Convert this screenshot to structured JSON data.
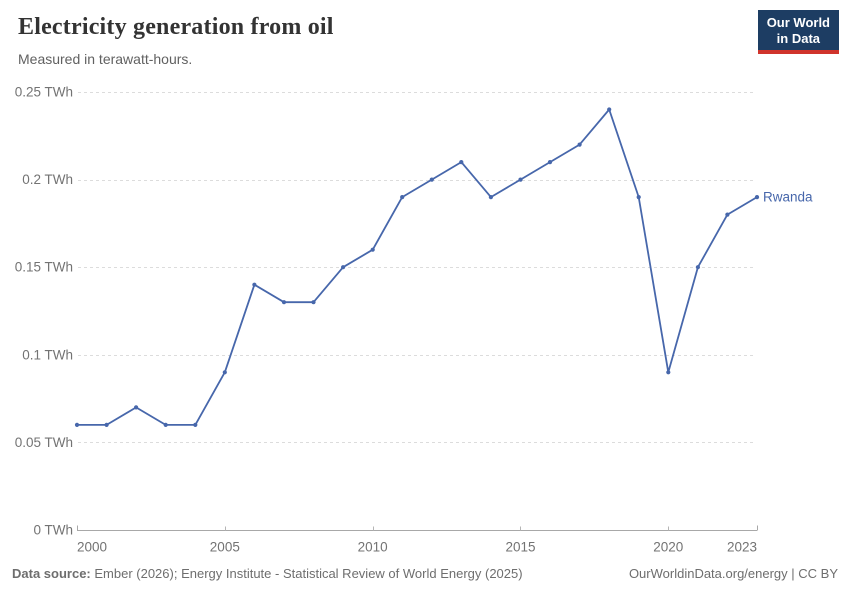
{
  "logo": {
    "line1": "Our World",
    "line2": "in Data",
    "bg": "#1d3d63",
    "accent": "#d0342c"
  },
  "chart_data": {
    "type": "line",
    "title": "Electricity generation from oil",
    "subtitle": "Measured in terawatt-hours.",
    "xlabel": "",
    "ylabel": "TWh",
    "x": [
      2000,
      2001,
      2002,
      2003,
      2004,
      2005,
      2006,
      2007,
      2008,
      2009,
      2010,
      2011,
      2012,
      2013,
      2014,
      2015,
      2016,
      2017,
      2018,
      2019,
      2020,
      2021,
      2022,
      2023
    ],
    "series": [
      {
        "name": "Rwanda",
        "color": "#4767ab",
        "values": [
          0.06,
          0.06,
          0.07,
          0.06,
          0.06,
          0.09,
          0.14,
          0.13,
          0.13,
          0.15,
          0.16,
          0.19,
          0.2,
          0.21,
          0.19,
          0.2,
          0.21,
          0.22,
          0.24,
          0.19,
          0.09,
          0.15,
          0.18,
          0.19
        ]
      }
    ],
    "xlim": [
      2000,
      2023
    ],
    "ylim": [
      0,
      0.25
    ],
    "y_ticks": [
      {
        "value": 0,
        "label": "0 TWh"
      },
      {
        "value": 0.05,
        "label": "0.05 TWh"
      },
      {
        "value": 0.1,
        "label": "0.1 TWh"
      },
      {
        "value": 0.15,
        "label": "0.15 TWh"
      },
      {
        "value": 0.2,
        "label": "0.2 TWh"
      },
      {
        "value": 0.25,
        "label": "0.25 TWh"
      }
    ],
    "x_ticks": [
      {
        "value": 2000,
        "label": "2000"
      },
      {
        "value": 2005,
        "label": "2005"
      },
      {
        "value": 2010,
        "label": "2010"
      },
      {
        "value": 2015,
        "label": "2015"
      },
      {
        "value": 2020,
        "label": "2020"
      },
      {
        "value": 2023,
        "label": "2023"
      }
    ],
    "grid": "horizontal-dashed",
    "legend_position": "end-of-line"
  },
  "footer": {
    "datasource_label": "Data source:",
    "datasource_text": " Ember (2026); Energy Institute - Statistical Review of World Energy (2025)",
    "link": "OurWorldinData.org/energy | CC BY"
  }
}
